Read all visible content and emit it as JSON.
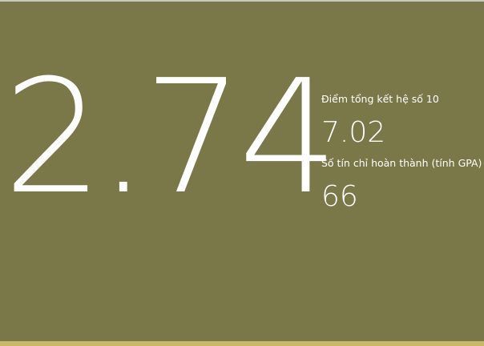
{
  "gpa": {
    "value": "2.74"
  },
  "stats": [
    {
      "label": "Điểm tổng kết hệ số 10",
      "value": "7.02"
    },
    {
      "label": "Số tín chỉ hoàn thành (tính GPA)",
      "value": "66"
    }
  ],
  "colors": {
    "panel_background": "#7a7848",
    "bottom_bar": "#c9b86a",
    "text": "#ffffff"
  }
}
